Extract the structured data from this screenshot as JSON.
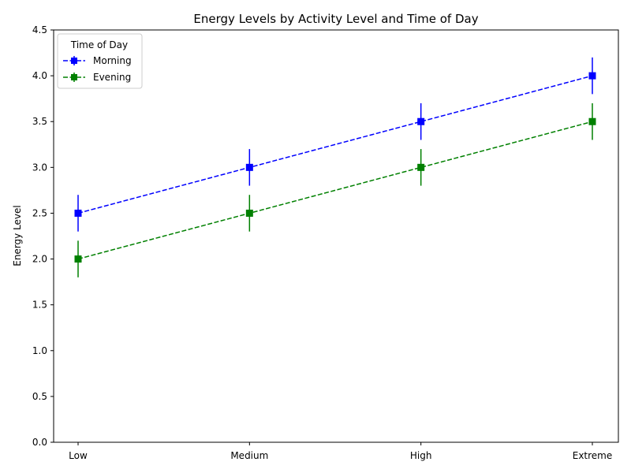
{
  "chart_data": {
    "type": "line",
    "title": "Energy Levels by Activity Level and Time of Day",
    "xlabel": "",
    "ylabel": "Energy Level",
    "categories": [
      "Low",
      "Medium",
      "High",
      "Extreme"
    ],
    "ylim": [
      0,
      4.5
    ],
    "yticks": [
      "0.0",
      "0.5",
      "1.0",
      "1.5",
      "2.0",
      "2.5",
      "3.0",
      "3.5",
      "4.0",
      "4.5"
    ],
    "grid": false,
    "legend": {
      "title": "Time of Day",
      "position": "top-left"
    },
    "series": [
      {
        "name": "Morning",
        "color": "#0000ff",
        "marker": "square",
        "line_style": "dashed",
        "values": [
          2.5,
          3.0,
          3.5,
          4.0
        ],
        "error": [
          0.2,
          0.2,
          0.2,
          0.2
        ]
      },
      {
        "name": "Evening",
        "color": "#008000",
        "marker": "square",
        "line_style": "dashed",
        "values": [
          2.0,
          2.5,
          3.0,
          3.5
        ],
        "error": [
          0.2,
          0.2,
          0.2,
          0.2
        ]
      }
    ]
  }
}
